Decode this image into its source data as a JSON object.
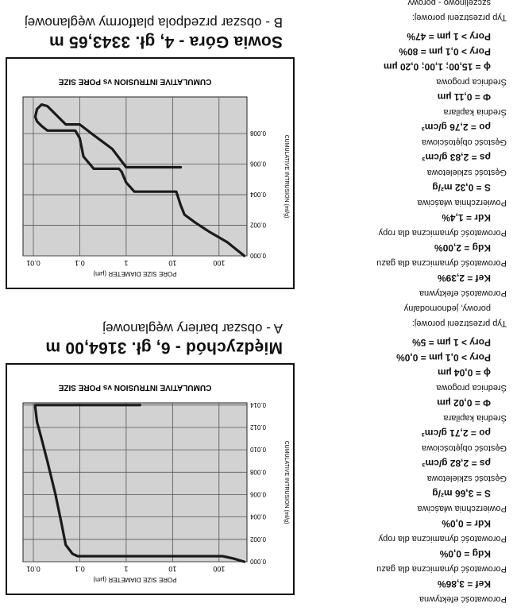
{
  "panels": [
    {
      "title": "Międzychód - 6, gł. 3164,00 m",
      "subtitle": "A - obszar bariery węglanowej",
      "params": [
        {
          "label": "Porowatość efektywna",
          "value": "Kef = 3,86%"
        },
        {
          "label": "Porowatość dynamiczna dla gazu",
          "value": "Kdg = 0,0%"
        },
        {
          "label": "Porowatość dynamiczna dla ropy",
          "value": "Kdr = 0,0%"
        },
        {
          "label": "Powierzchnia właściwa",
          "value": "S = 3,66 m²/g"
        },
        {
          "label": "Gęstość szkieletowa",
          "value": "ρs = 2,82 g/cm³"
        },
        {
          "label": "Gęstość objętościowa",
          "value": "ρo = 2,71 g/cm³"
        },
        {
          "label": "Średnia kapilara",
          "value": "Φ = 0,02 µm"
        },
        {
          "label": "Średnica progowa",
          "value": "ϕ = 0,04 µm"
        },
        {
          "label": "",
          "value": "Pory > 0,1 µm = 0,0%"
        },
        {
          "label": "",
          "value": "Pory > 1 µm = 5%"
        },
        {
          "label": "Typ przestrzeni porowej:",
          "value": ""
        },
        {
          "label": "porowy, jednomodalny",
          "value": ""
        }
      ]
    },
    {
      "title": "Sowia Góra - 4, gł. 3343,65 m",
      "subtitle": "B - obszar przedpola platformy węglanowej",
      "params": [
        {
          "label": "Porowatość efektywna",
          "value": "Kef = 2,39%"
        },
        {
          "label": "Porowatość dynamiczna dla gazu",
          "value": "Kdg = 2,00%"
        },
        {
          "label": "Porowatość dynamiczna dla ropy",
          "value": "Kdr = 1,4%"
        },
        {
          "label": "Powierzchnia właściwa",
          "value": "S = 0,32 m²/g"
        },
        {
          "label": "Gęstość szkieletowa",
          "value": "ρs = 2,83 g/cm³"
        },
        {
          "label": "Gęstość objętościowa",
          "value": "ρo = 2,76 g/cm³"
        },
        {
          "label": "Średnia kapilara",
          "value": "Φ = 0,11 µm"
        },
        {
          "label": "Średnica progowa",
          "value": "ϕ = 15,00; 1,00; 0,20 µm"
        },
        {
          "label": "",
          "value": "Pory > 0,1 µm = 80%"
        },
        {
          "label": "",
          "value": "Pory > 1 µm = 47%"
        },
        {
          "label": "Typ przestrzeni porowej:",
          "value": ""
        },
        {
          "label": "szczelinowo - porowy",
          "value": ""
        }
      ]
    }
  ],
  "chart_data": [
    {
      "type": "line",
      "title": "CUMULATIVE INTRUSION  vs  PORE SIZE",
      "xlabel": "PORE SIZE DIAMETER (µm)",
      "ylabel": "CUMULATIVE INTRUSION (ml/g)",
      "x_scale": "log",
      "x_reversed": true,
      "xlim": [
        400,
        0.006
      ],
      "ylim": [
        0,
        0.0142
      ],
      "x_ticks": [
        100,
        10,
        1,
        0.1,
        0.01
      ],
      "x_tick_labels": [
        "100",
        "10",
        "1",
        "0.1",
        "0.01"
      ],
      "y_ticks": [
        0,
        0.002,
        0.004,
        0.006,
        0.008,
        0.01,
        0.012,
        0.014
      ],
      "y_tick_labels": [
        "0.000",
        "0.002",
        "0.004",
        "0.006",
        "0.008",
        "0.010",
        "0.012",
        "0.014"
      ],
      "grid": true,
      "series": [
        {
          "x": [
            350,
            200,
            120,
            60,
            20,
            5,
            1,
            0.3,
            0.09,
            0.07,
            0.05,
            0.04,
            0.03,
            0.02,
            0.015,
            0.012,
            0.011,
            0.011,
            0.05,
            0.2,
            1,
            2
          ],
          "y": [
            0.0,
            0.0003,
            0.0005,
            0.0005,
            0.0005,
            0.0005,
            0.0005,
            0.0005,
            0.0005,
            0.0007,
            0.0015,
            0.0035,
            0.006,
            0.009,
            0.011,
            0.0125,
            0.0138,
            0.014,
            0.014,
            0.014,
            0.014,
            0.014
          ]
        }
      ]
    },
    {
      "type": "line",
      "title": "CUMULATIVE INTRUSION  vs  PORE SIZE",
      "xlabel": "PORE SIZE DIAMETER (µm)",
      "ylabel": "CUMULATIVE INTRUSION (ml/g)",
      "x_scale": "log",
      "x_reversed": true,
      "xlim": [
        400,
        0.006
      ],
      "ylim": [
        0,
        0.0104
      ],
      "x_ticks": [
        100,
        10,
        1,
        0.1,
        0.01
      ],
      "x_tick_labels": [
        "100",
        "10",
        "1",
        "0.1",
        "0.01"
      ],
      "y_ticks": [
        0,
        0.002,
        0.004,
        0.006,
        0.008
      ],
      "y_tick_labels": [
        "0.000",
        "0.002",
        "0.004",
        "0.006",
        "0.008"
      ],
      "grid": true,
      "series": [
        {
          "x": [
            350,
            150,
            60,
            30,
            18,
            15,
            12,
            8,
            3,
            1.5,
            1,
            0.8,
            0.7,
            0.5,
            0.3,
            0.2,
            0.12,
            0.1,
            0.08,
            0.05,
            0.03,
            0.02,
            0.015,
            0.012,
            0.011,
            0.012,
            0.015,
            0.02,
            0.05,
            0.08,
            0.1,
            0.2,
            0.5,
            1,
            3,
            10,
            15
          ],
          "y": [
            0.0,
            0.0009,
            0.0016,
            0.0022,
            0.0027,
            0.0033,
            0.0042,
            0.0042,
            0.0042,
            0.0042,
            0.0048,
            0.0055,
            0.0057,
            0.0057,
            0.0057,
            0.0057,
            0.0065,
            0.0077,
            0.0082,
            0.0082,
            0.0082,
            0.0082,
            0.0085,
            0.0088,
            0.0091,
            0.0096,
            0.0099,
            0.0098,
            0.0086,
            0.0086,
            0.0086,
            0.0079,
            0.007,
            0.0058,
            0.0058,
            0.0058,
            0.0058
          ]
        }
      ]
    }
  ]
}
